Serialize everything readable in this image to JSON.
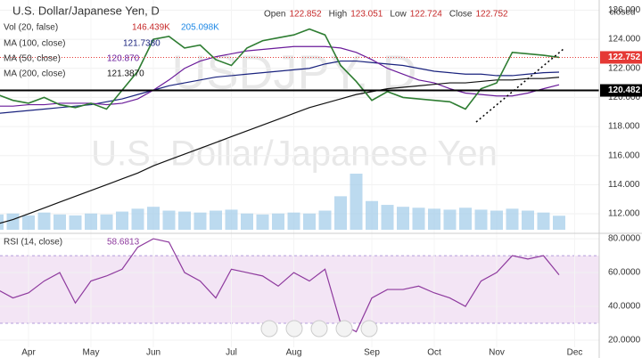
{
  "chart_data": [
    {
      "type": "line",
      "title": "U.S. Dollar/Japanese Yen, D",
      "watermark": [
        "USDJPY, D",
        "U.S. Dollar/Japanese Yen"
      ],
      "status": "closed",
      "ohlc": [
        {
          "name": "Open",
          "value": "122.852"
        },
        {
          "name": "High",
          "value": "123.051"
        },
        {
          "name": "Low",
          "value": "122.724"
        },
        {
          "name": "Close",
          "value": "122.752"
        }
      ],
      "categories": [
        null,
        null,
        "Apr",
        null,
        null,
        null,
        "May",
        null,
        null,
        null,
        "Jun",
        null,
        null,
        null,
        null,
        "Jul",
        null,
        null,
        null,
        "Aug",
        null,
        null,
        null,
        null,
        "Sep",
        null,
        null,
        null,
        "Oct",
        null,
        null,
        null,
        "Nov",
        null,
        null,
        null,
        null,
        "Dec"
      ],
      "values": [
        120.2,
        119.8,
        119.6,
        120.0,
        119.5,
        119.3,
        119.6,
        119.2,
        120.5,
        121.8,
        124.0,
        124.2,
        123.4,
        123.6,
        122.6,
        122.2,
        123.4,
        123.9,
        124.1,
        124.3,
        124.7,
        124.3,
        122.2,
        121.1,
        119.8,
        120.4,
        120.0,
        119.9,
        119.8,
        119.7,
        119.2,
        120.6,
        121.0,
        123.1,
        123.0,
        122.9,
        122.752,
        null
      ],
      "color": "#2e7d32",
      "series": [
        {
          "name": "MA (100, close)",
          "legend_value": "121.7380",
          "color": "#1a237e",
          "values": [
            118.9,
            119.0,
            119.1,
            119.2,
            119.3,
            119.4,
            119.5,
            119.7,
            119.9,
            120.2,
            120.5,
            120.8,
            121.0,
            121.2,
            121.4,
            121.5,
            121.6,
            121.7,
            121.8,
            121.9,
            122.0,
            122.3,
            122.5,
            122.5,
            122.4,
            122.3,
            122.2,
            122.0,
            121.8,
            121.7,
            121.6,
            121.6,
            121.5,
            121.5,
            121.6,
            121.7,
            121.738,
            null
          ]
        },
        {
          "name": "MA (50, close)",
          "legend_value": "120.870",
          "color": "#6a1b9a",
          "values": [
            119.4,
            119.4,
            119.5,
            119.5,
            119.6,
            119.6,
            119.6,
            119.5,
            119.6,
            119.9,
            120.5,
            121.2,
            122.0,
            122.5,
            122.8,
            123.0,
            123.2,
            123.3,
            123.4,
            123.5,
            123.5,
            123.5,
            123.4,
            123.1,
            122.6,
            122.0,
            121.6,
            121.2,
            121.0,
            120.6,
            120.3,
            120.2,
            120.1,
            120.1,
            120.3,
            120.6,
            120.87,
            null
          ]
        },
        {
          "name": "MA (200, close)",
          "legend_value": "121.3870",
          "color": "#111111",
          "values": [
            111.3,
            111.6,
            112.0,
            112.4,
            112.8,
            113.2,
            113.6,
            114.0,
            114.4,
            114.8,
            115.3,
            115.7,
            116.1,
            116.5,
            116.9,
            117.3,
            117.7,
            118.1,
            118.5,
            118.9,
            119.3,
            119.6,
            119.9,
            120.2,
            120.4,
            120.6,
            120.7,
            120.8,
            120.9,
            121.0,
            121.0,
            121.1,
            121.2,
            121.2,
            121.3,
            121.3,
            121.387,
            null
          ]
        }
      ],
      "volume": {
        "name": "Vol (20, false)",
        "legend_values": [
          "146.439K",
          "205.098K"
        ],
        "color": "#9fcbe8",
        "values": [
          160000,
          170000,
          150000,
          180000,
          160000,
          150000,
          170000,
          160000,
          190000,
          220000,
          240000,
          200000,
          190000,
          180000,
          200000,
          210000,
          170000,
          160000,
          170000,
          180000,
          170000,
          200000,
          350000,
          586000,
          300000,
          260000,
          240000,
          230000,
          220000,
          210000,
          230000,
          210000,
          200000,
          220000,
          200000,
          180000,
          146439,
          null
        ]
      },
      "y2lim": [
        0,
        2400000
      ],
      "hlines": [
        {
          "value": 120.482,
          "label": "120.482",
          "color": "#000000",
          "style": "solid"
        },
        {
          "value": 122.752,
          "label": "122.752",
          "color": "#e53935",
          "style": "dotted"
        }
      ],
      "ylim": [
        110.9,
        126.7
      ],
      "yticks": [
        {
          "value": 112,
          "label": "112.000"
        },
        {
          "value": 114,
          "label": "114.000"
        },
        {
          "value": 116,
          "label": "116.000"
        },
        {
          "value": 118,
          "label": "118.000"
        },
        {
          "value": 120,
          "label": "120.000"
        },
        {
          "value": 122,
          "label": "122.000"
        },
        {
          "value": 124,
          "label": "124.000"
        },
        {
          "value": 126,
          "label": "126.000"
        }
      ]
    },
    {
      "type": "line",
      "series": [
        {
          "name": "RSI (14, close)",
          "legend_value": "58.6813",
          "color": "#8e3a9e",
          "values": [
            50,
            45,
            48,
            55,
            60,
            42,
            55,
            58,
            62,
            75,
            80,
            78,
            60,
            55,
            45,
            62,
            60,
            58,
            52,
            60,
            55,
            62,
            30,
            25,
            45,
            50,
            50,
            52,
            48,
            45,
            40,
            55,
            60,
            70,
            68,
            70,
            58.6813,
            null
          ]
        }
      ],
      "bands": [
        30,
        70
      ],
      "ylim": [
        9.5,
        83.2
      ],
      "yticks": [
        {
          "value": 20,
          "label": "20.0000"
        },
        {
          "value": 40,
          "label": "40.0000"
        },
        {
          "value": 60,
          "label": "60.0000"
        },
        {
          "value": 80,
          "label": "80.0000"
        }
      ]
    }
  ]
}
